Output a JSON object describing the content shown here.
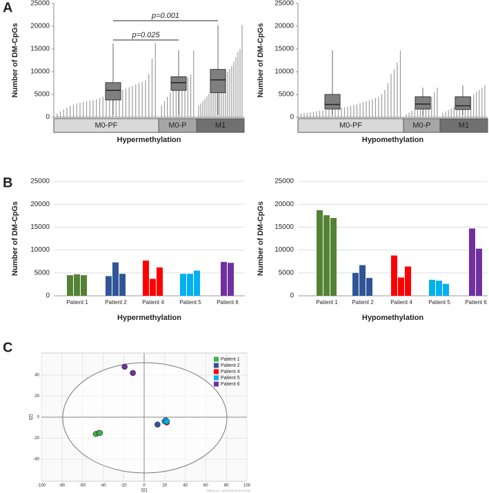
{
  "panels": [
    "A",
    "B",
    "C"
  ],
  "chart_data": [
    {
      "type": "box_bar",
      "ylabel": "Number of DM-CpGs",
      "xlabel": "Hypermethylation",
      "ylim": [
        0,
        25000
      ],
      "yticks": [
        0,
        5000,
        10000,
        15000,
        20000,
        25000
      ],
      "annotations": [
        "p=0.025",
        "p=0.001"
      ],
      "groups": [
        {
          "name": "M0-PF",
          "values": [
            800,
            1300,
            1700,
            2100,
            2500,
            2800,
            3000,
            3200,
            3400,
            3500,
            3600,
            3800,
            3900,
            4200,
            4500,
            4800,
            5000,
            5200,
            5500,
            5700,
            6000,
            6300,
            6600,
            6900,
            7200,
            7500,
            7800,
            8100,
            9500,
            12900,
            16300
          ],
          "box": {
            "min": 500,
            "q1": 3800,
            "median": 5900,
            "q3": 7600,
            "max": 16200
          }
        },
        {
          "name": "M0-P",
          "values": [
            2500,
            3500,
            4500,
            5400,
            6000,
            6700,
            7200,
            7800,
            8300,
            8800,
            9400,
            14700
          ],
          "box": {
            "min": 500,
            "q1": 5900,
            "median": 7600,
            "q3": 8900,
            "max": 14700
          }
        },
        {
          "name": "M1",
          "values": [
            2600,
            3000,
            3500,
            4000,
            4600,
            5200,
            5800,
            6300,
            6800,
            7300,
            7800,
            8300,
            8800,
            9400,
            10000,
            10600,
            11300,
            12200,
            13200,
            14300,
            15000,
            20300
          ],
          "box": {
            "min": 500,
            "q1": 5400,
            "median": 8200,
            "q3": 10500,
            "max": 20200
          }
        }
      ]
    },
    {
      "type": "box_bar",
      "ylabel": "Number of DM-CpGs",
      "xlabel": "Hypomethylation",
      "ylim": [
        0,
        25000
      ],
      "yticks": [
        0,
        5000,
        10000,
        15000,
        20000,
        25000
      ],
      "annotations": [],
      "groups": [
        {
          "name": "M0-PF",
          "values": [
            800,
            900,
            1000,
            1100,
            1200,
            1300,
            1400,
            1500,
            1600,
            1700,
            1800,
            1900,
            2000,
            2100,
            2200,
            2300,
            2500,
            2700,
            2900,
            3100,
            3300,
            3500,
            3700,
            3900,
            4200,
            4500,
            5000,
            6000,
            7500,
            9500,
            10500,
            12000,
            14700
          ],
          "box": {
            "min": 500,
            "q1": 1800,
            "median": 2800,
            "q3": 5000,
            "max": 14700
          }
        },
        {
          "name": "M0-P",
          "values": [
            600,
            1000,
            1400,
            1800,
            2200,
            2600,
            3000,
            3400,
            3800,
            4500,
            5600,
            6500
          ],
          "box": {
            "min": 300,
            "q1": 1800,
            "median": 2900,
            "q3": 4500,
            "max": 6500
          }
        },
        {
          "name": "M1",
          "values": [
            1000,
            1300,
            1600,
            1900,
            2200,
            2500,
            2800,
            3100,
            3500,
            3900,
            4400,
            5000,
            5500,
            6000,
            6500,
            7000
          ],
          "box": {
            "min": 400,
            "q1": 1700,
            "median": 2500,
            "q3": 4500,
            "max": 7000
          }
        }
      ]
    },
    {
      "type": "grouped_bar",
      "ylabel": "Number of DM-CpGs",
      "xlabel": "Hypermethylation",
      "ylim": [
        0,
        25000
      ],
      "yticks": [
        0,
        5000,
        10000,
        15000,
        20000,
        25000
      ],
      "grid": true,
      "series": [
        {
          "name": "Patient 1",
          "color": "#548235",
          "values": [
            4500,
            4700,
            4500
          ]
        },
        {
          "name": "Patient 2",
          "color": "#2f5597",
          "values": [
            4300,
            7300,
            4800
          ]
        },
        {
          "name": "Patient 4",
          "color": "#ff0000",
          "values": [
            7700,
            3700,
            6200
          ]
        },
        {
          "name": "Patient 5",
          "color": "#00b0f0",
          "values": [
            4800,
            4800,
            5500
          ]
        },
        {
          "name": "Patient 6",
          "color": "#7030a0",
          "values": [
            7400,
            7200
          ]
        }
      ]
    },
    {
      "type": "grouped_bar",
      "ylabel": "Number of DM-CpGs",
      "xlabel": "Hypomethylation",
      "ylim": [
        0,
        25000
      ],
      "yticks": [
        0,
        5000,
        10000,
        15000,
        20000,
        25000
      ],
      "grid": true,
      "series": [
        {
          "name": "Patient 1",
          "color": "#548235",
          "values": [
            18700,
            17600,
            17000
          ]
        },
        {
          "name": "Patient 2",
          "color": "#2f5597",
          "values": [
            5000,
            6700,
            3900
          ]
        },
        {
          "name": "Patient 4",
          "color": "#ff0000",
          "values": [
            8800,
            4000,
            6400
          ]
        },
        {
          "name": "Patient 5",
          "color": "#00b0f0",
          "values": [
            3500,
            3300,
            2600
          ]
        },
        {
          "name": "Patient 6",
          "color": "#7030a0",
          "values": [
            14700,
            10300
          ]
        }
      ]
    },
    {
      "type": "scatter",
      "xlabel": "t[1]",
      "ylabel": "t[2]",
      "footnote": "SIMCA 14 - 6/25/2018 10:51:25 AM",
      "xlim": [
        -100,
        100
      ],
      "xticks": [
        -100,
        -80,
        -60,
        -40,
        -20,
        0,
        20,
        40,
        60,
        80,
        100
      ],
      "ylim": [
        -61,
        61
      ],
      "yticks": [
        -40,
        -20,
        0,
        20,
        40
      ],
      "grid": true,
      "legend": "top-right",
      "series": [
        {
          "name": "Patient 1",
          "color": "#3cb44b",
          "x": [
            -47,
            -44,
            -43
          ],
          "y": [
            -16,
            -15,
            -15
          ]
        },
        {
          "name": "Patient 2",
          "color": "#2f5597",
          "x": [
            13
          ],
          "y": [
            -7
          ]
        },
        {
          "name": "Patient 4",
          "color": "#ff0000",
          "x": [
            22
          ],
          "y": [
            -5
          ]
        },
        {
          "name": "Patient 5",
          "color": "#00b0f0",
          "x": [
            20,
            21,
            22
          ],
          "y": [
            -4,
            -3,
            -4
          ]
        },
        {
          "name": "Patient 6",
          "color": "#7030a0",
          "x": [
            -19,
            -11
          ],
          "y": [
            48,
            42
          ]
        }
      ]
    }
  ]
}
